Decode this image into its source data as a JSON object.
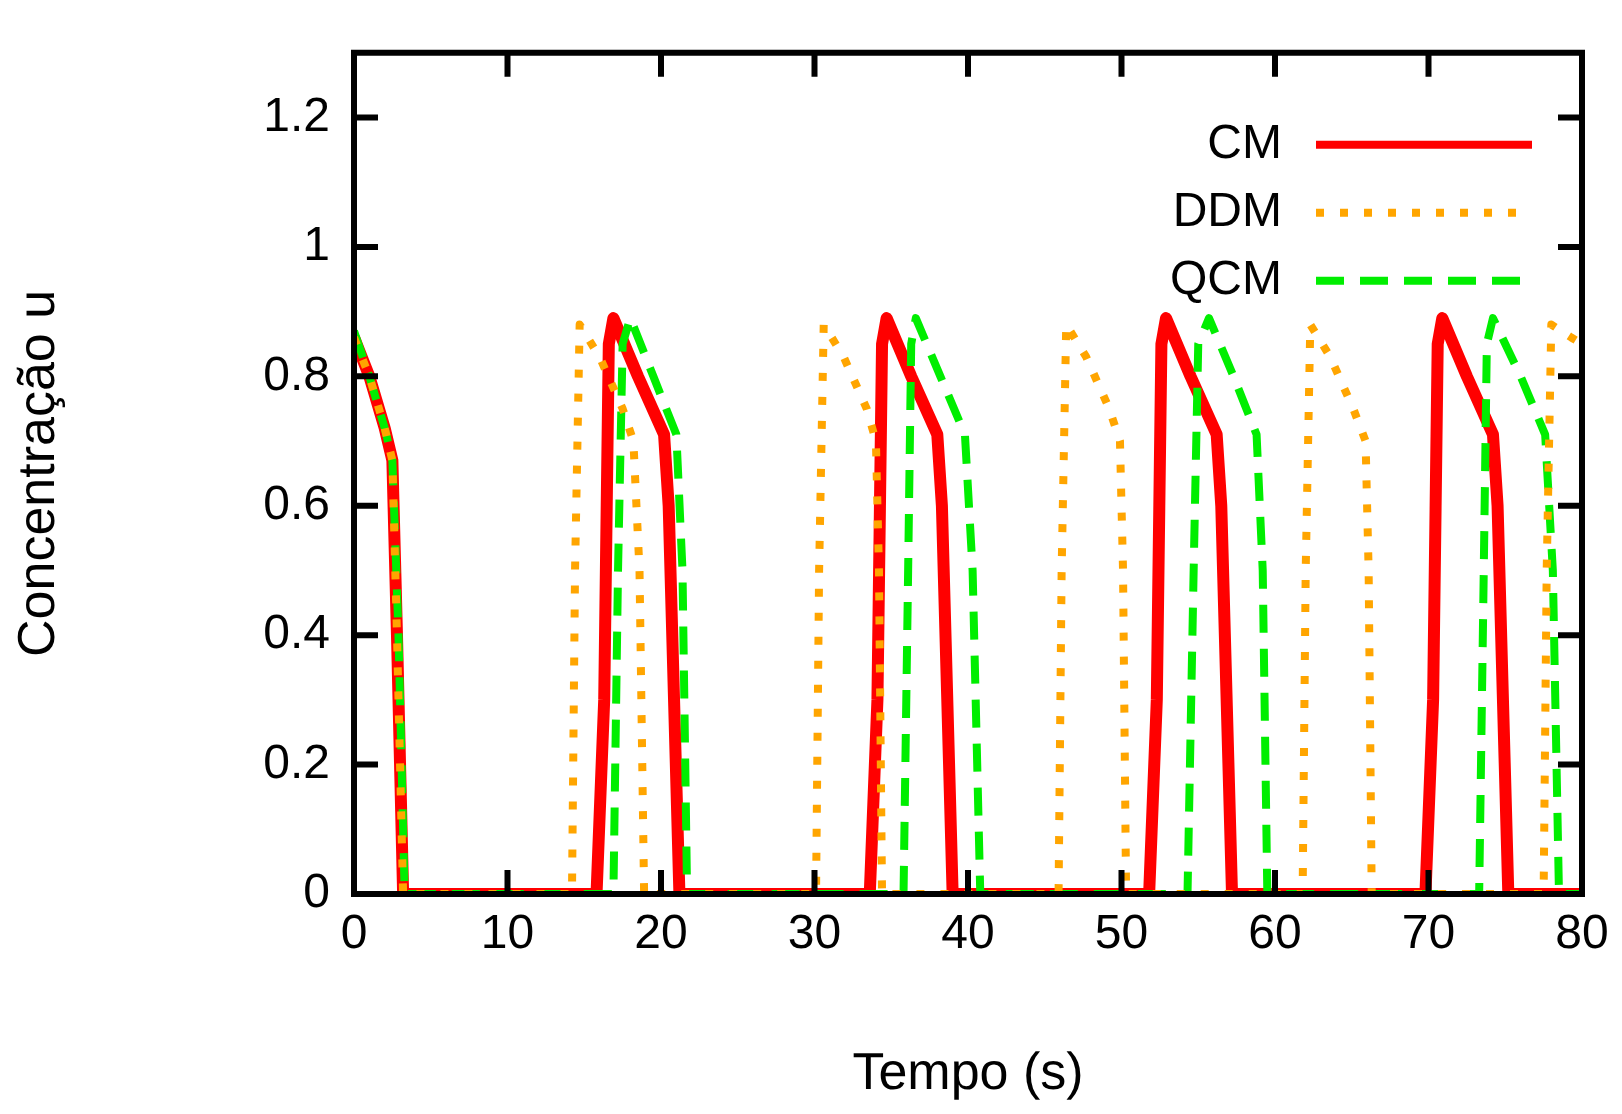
{
  "chart_data": {
    "type": "line",
    "xlabel": "Tempo (s)",
    "ylabel": "Concentração u",
    "xlim": [
      0,
      80
    ],
    "xticks": [
      0,
      10,
      20,
      30,
      40,
      50,
      60,
      70,
      80
    ],
    "ylim": [
      0,
      1.3
    ],
    "yticks": [
      0,
      0.2,
      0.4,
      0.6,
      0.8,
      1,
      1.2
    ],
    "grid": false,
    "legend": "top right",
    "marker": "none",
    "series": [
      {
        "name": "CM",
        "color": "#ff0000",
        "line_style": "solid",
        "x": [
          0,
          1,
          2,
          2.5,
          2.8,
          3.2,
          15.8,
          16.3,
          16.6,
          16.9,
          18.5,
          20.2,
          20.5,
          21.2,
          33.6,
          34.1,
          34.4,
          34.7,
          36.3,
          38,
          38.3,
          39,
          51.8,
          52.3,
          52.6,
          52.9,
          54.5,
          56.2,
          56.5,
          57.2,
          69.8,
          70.3,
          70.6,
          70.9,
          72.5,
          74.2,
          74.5,
          75.2,
          80
        ],
        "values": [
          0.86,
          0.8,
          0.72,
          0.67,
          0.4,
          0,
          0,
          0.3,
          0.85,
          0.89,
          0.8,
          0.71,
          0.6,
          0,
          0,
          0.3,
          0.85,
          0.89,
          0.8,
          0.71,
          0.6,
          0,
          0,
          0.3,
          0.85,
          0.89,
          0.8,
          0.71,
          0.6,
          0,
          0,
          0.3,
          0.85,
          0.89,
          0.8,
          0.71,
          0.6,
          0,
          0
        ]
      },
      {
        "name": "DDM",
        "color": "#ffa500",
        "line_style": "dotted",
        "x": [
          0,
          1,
          2,
          2.5,
          2.8,
          3.2,
          14.2,
          14.4,
          14.7,
          16,
          17.5,
          18.2,
          18.6,
          18.9,
          30.1,
          30.3,
          30.6,
          31.9,
          33.4,
          34,
          34.2,
          34.4,
          45.9,
          46.1,
          46.4,
          47.7,
          49.2,
          49.9,
          50.1,
          50.3,
          61.8,
          62,
          62.3,
          63.6,
          65.1,
          65.9,
          66.1,
          66.3,
          77.5,
          77.7,
          78,
          79.3,
          80
        ],
        "values": [
          0.86,
          0.8,
          0.72,
          0.67,
          0.4,
          0,
          0,
          0.5,
          0.88,
          0.83,
          0.75,
          0.7,
          0.5,
          0,
          0,
          0.5,
          0.88,
          0.83,
          0.75,
          0.7,
          0.5,
          0,
          0,
          0.5,
          0.88,
          0.83,
          0.75,
          0.7,
          0.5,
          0,
          0,
          0.5,
          0.88,
          0.83,
          0.75,
          0.7,
          0.5,
          0,
          0,
          0.5,
          0.88,
          0.86,
          0.85
        ]
      },
      {
        "name": "QCM",
        "color": "#00ee00",
        "line_style": "dashed",
        "x": [
          0,
          1,
          2,
          2.5,
          2.9,
          3.3,
          16.9,
          17.2,
          17.5,
          18,
          19.5,
          21,
          21.4,
          21.7,
          35.8,
          36.1,
          36.3,
          36.6,
          38.2,
          39.8,
          40.3,
          40.8,
          54.3,
          54.7,
          55,
          55.7,
          57.3,
          58.8,
          59.2,
          59.5,
          73.3,
          73.6,
          73.8,
          74.2,
          76,
          77.6,
          78.1,
          78.5,
          80
        ],
        "values": [
          0.87,
          0.8,
          0.72,
          0.67,
          0.4,
          0,
          0,
          0.5,
          0.85,
          0.89,
          0.8,
          0.71,
          0.5,
          0,
          0,
          0.5,
          0.85,
          0.89,
          0.8,
          0.71,
          0.5,
          0,
          0,
          0.5,
          0.85,
          0.89,
          0.8,
          0.71,
          0.5,
          0,
          0,
          0.5,
          0.85,
          0.89,
          0.8,
          0.71,
          0.5,
          0,
          0
        ]
      }
    ]
  }
}
